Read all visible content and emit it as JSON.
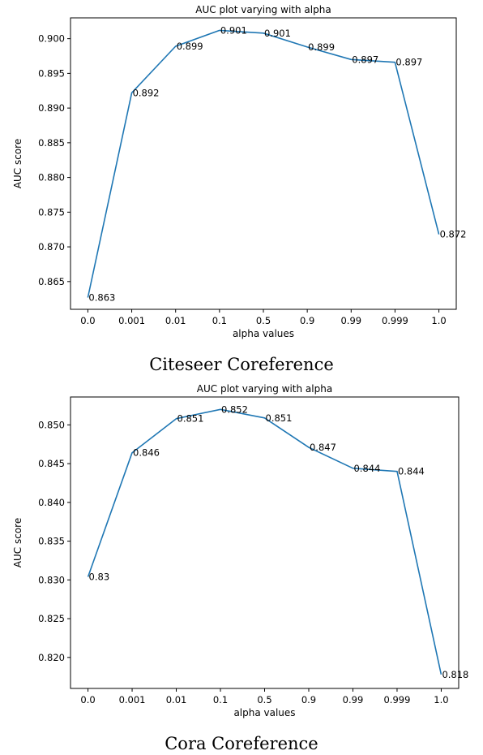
{
  "captions": [
    "Citeseer Coreference",
    "Cora Coreference"
  ],
  "chart_data": [
    {
      "type": "line",
      "title": "AUC plot varying with alpha",
      "xlabel": "alpha values",
      "ylabel": "AUC score",
      "categories": [
        "0.0",
        "0.001",
        "0.01",
        "0.1",
        "0.5",
        "0.9",
        "0.99",
        "0.999",
        "1.0"
      ],
      "values": [
        0.8627,
        0.8922,
        0.8989,
        0.9012,
        0.9008,
        0.8988,
        0.897,
        0.8966,
        0.8718
      ],
      "data_labels": [
        "0.863",
        "0.892",
        "0.899",
        "0.901",
        "0.901",
        "0.899",
        "0.897",
        "0.897",
        "0.872"
      ],
      "yticks": [
        "0.865",
        "0.870",
        "0.875",
        "0.880",
        "0.885",
        "0.890",
        "0.895",
        "0.900"
      ],
      "ytick_values": [
        0.865,
        0.87,
        0.875,
        0.88,
        0.885,
        0.89,
        0.895,
        0.9
      ],
      "ylim": [
        0.861,
        0.903
      ],
      "line_color": "#1f77b4",
      "grid": false,
      "legend": "none"
    },
    {
      "type": "line",
      "title": "AUC plot varying with alpha",
      "xlabel": "alpha values",
      "ylabel": "AUC score",
      "categories": [
        "0.0",
        "0.001",
        "0.01",
        "0.1",
        "0.5",
        "0.9",
        "0.99",
        "0.999",
        "1.0"
      ],
      "values": [
        0.8304,
        0.8464,
        0.8508,
        0.852,
        0.8509,
        0.8471,
        0.8444,
        0.844,
        0.8178
      ],
      "data_labels": [
        "0.83",
        "0.846",
        "0.851",
        "0.852",
        "0.851",
        "0.847",
        "0.844",
        "0.844",
        "0.818"
      ],
      "yticks": [
        "0.820",
        "0.825",
        "0.830",
        "0.835",
        "0.840",
        "0.845",
        "0.850"
      ],
      "ytick_values": [
        0.82,
        0.825,
        0.83,
        0.835,
        0.84,
        0.845,
        0.85
      ],
      "ylim": [
        0.816,
        0.8536
      ],
      "line_color": "#1f77b4",
      "grid": false,
      "legend": "none"
    }
  ]
}
